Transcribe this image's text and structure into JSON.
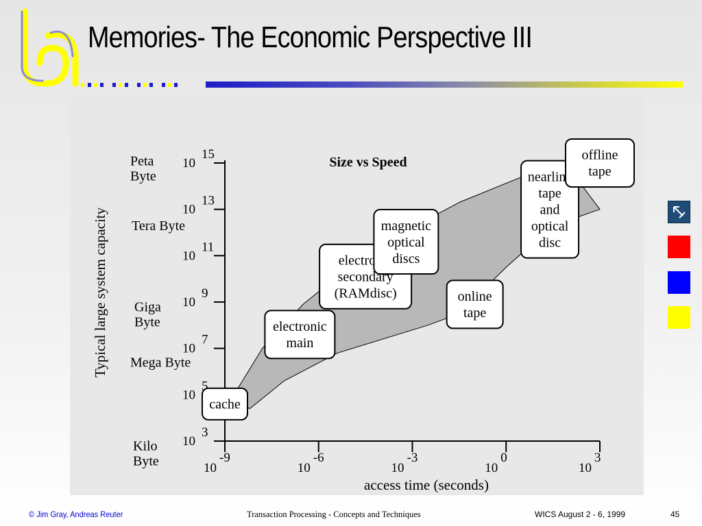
{
  "slide": {
    "title": "Memories- The Economic Perspective III",
    "accent_colors": {
      "blue": "#1c1cc8",
      "yellow": "#ffff00",
      "red": "#ff0000"
    }
  },
  "nav": {
    "buttons": [
      {
        "name": "arrow",
        "icon": "arrow-up-left-icon",
        "color": "#1f4d78"
      },
      {
        "name": "red",
        "color": "#ff0000"
      },
      {
        "name": "blue",
        "color": "#0000ff"
      },
      {
        "name": "yellow",
        "color": "#ffff00"
      }
    ]
  },
  "footer": {
    "left": "© Jim Gray, Andreas Reuter",
    "center": "Transaction Processing - Concepts and Techniques",
    "date": "WICS August 2 - 6, 1999",
    "page": "45"
  },
  "chart_data": {
    "type": "area",
    "title": "Size vs Speed",
    "xlabel": "access time (seconds)",
    "ylabel": "Typical large system capacity",
    "x_scale": "log10",
    "y_scale": "log10",
    "x_ticks": [
      {
        "base": "10",
        "exp": "-9",
        "value": -9
      },
      {
        "base": "10",
        "exp": "-6",
        "value": -6
      },
      {
        "base": "10",
        "exp": "-3",
        "value": -3
      },
      {
        "base": "10",
        "exp": "0",
        "value": 0
      },
      {
        "base": "10",
        "exp": "3",
        "value": 3
      }
    ],
    "y_ticks": [
      {
        "base": "10",
        "exp": "15",
        "value": 15
      },
      {
        "base": "10",
        "exp": "13",
        "value": 13
      },
      {
        "base": "10",
        "exp": "11",
        "value": 11
      },
      {
        "base": "10",
        "exp": "9",
        "value": 9
      },
      {
        "base": "10",
        "exp": "7",
        "value": 7
      },
      {
        "base": "10",
        "exp": "5",
        "value": 5
      },
      {
        "base": "10",
        "exp": "3",
        "value": 3
      }
    ],
    "y_category_labels": [
      {
        "lines": [
          "Peta",
          "Byte"
        ],
        "value": 14.9
      },
      {
        "lines": [
          "Tera Byte"
        ],
        "value": 12.1
      },
      {
        "lines": [
          "Giga",
          "Byte"
        ],
        "value": 8.6
      },
      {
        "lines": [
          "Mega Byte"
        ],
        "value": 6.2
      },
      {
        "lines": [
          "Kilo",
          "Byte"
        ],
        "value": 2.6
      }
    ],
    "band": {
      "upper": [
        [
          -8.8,
          4.8
        ],
        [
          -7.8,
          7.0
        ],
        [
          -6.5,
          8.9
        ],
        [
          -4.3,
          11.3
        ],
        [
          -1.5,
          13.3
        ],
        [
          0.5,
          14.4
        ],
        [
          2.0,
          14.8
        ]
      ],
      "lower": [
        [
          -8.2,
          4.4
        ],
        [
          -7.1,
          5.6
        ],
        [
          -5.4,
          6.8
        ],
        [
          -2.5,
          8.0
        ],
        [
          -1.5,
          8.5
        ],
        [
          0.0,
          10.5
        ],
        [
          1.5,
          12.3
        ],
        [
          3.0,
          13.0
        ]
      ],
      "color": "#b8b8b8"
    },
    "items": [
      {
        "name": "cache",
        "lines": [
          "cache"
        ],
        "x": -9.0,
        "y": 4.6
      },
      {
        "name": "electronic-main",
        "lines": [
          "electronic",
          "main"
        ],
        "x": -6.6,
        "y": 7.6
      },
      {
        "name": "electronic-secondary",
        "lines": [
          "electronic",
          "secondary",
          "(RAMdisc)"
        ],
        "x": -4.5,
        "y": 10.1
      },
      {
        "name": "magnetic-optical-discs",
        "lines": [
          "magnetic",
          "optical",
          "discs"
        ],
        "x": -3.2,
        "y": 11.6
      },
      {
        "name": "online-tape",
        "lines": [
          "online",
          "tape"
        ],
        "x": -1.0,
        "y": 8.9
      },
      {
        "name": "nearline-tape-optical-disc",
        "lines": [
          "nearline",
          "tape",
          "and",
          "optical",
          "disc"
        ],
        "x": 1.4,
        "y": 13.0
      },
      {
        "name": "offline-tape",
        "lines": [
          "offline",
          "tape"
        ],
        "x": 3.0,
        "y": 15.0
      }
    ]
  }
}
